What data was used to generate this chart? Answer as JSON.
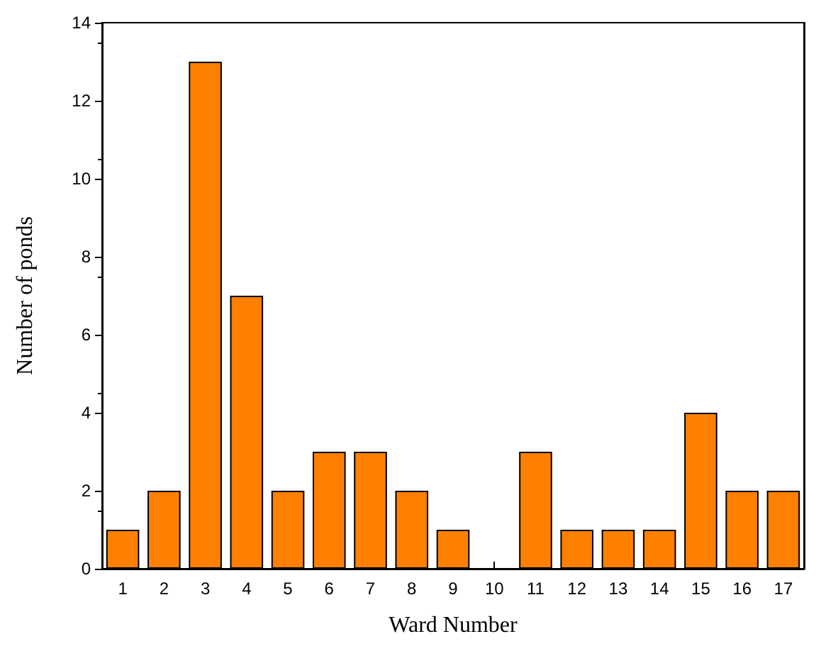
{
  "chart_data": {
    "type": "bar",
    "xlabel": "Ward Number",
    "ylabel": "Number of ponds",
    "categories": [
      "1",
      "2",
      "3",
      "4",
      "5",
      "6",
      "7",
      "8",
      "9",
      "10",
      "11",
      "12",
      "13",
      "14",
      "15",
      "16",
      "17"
    ],
    "values": [
      1,
      2,
      13,
      7,
      2,
      3,
      3,
      2,
      1,
      0,
      3,
      1,
      1,
      1,
      4,
      2,
      2
    ],
    "color": "#ff8000",
    "ylim": [
      0,
      14
    ],
    "yticks": [
      0,
      2,
      4,
      6,
      8,
      10,
      12,
      14
    ],
    "grid": false
  }
}
